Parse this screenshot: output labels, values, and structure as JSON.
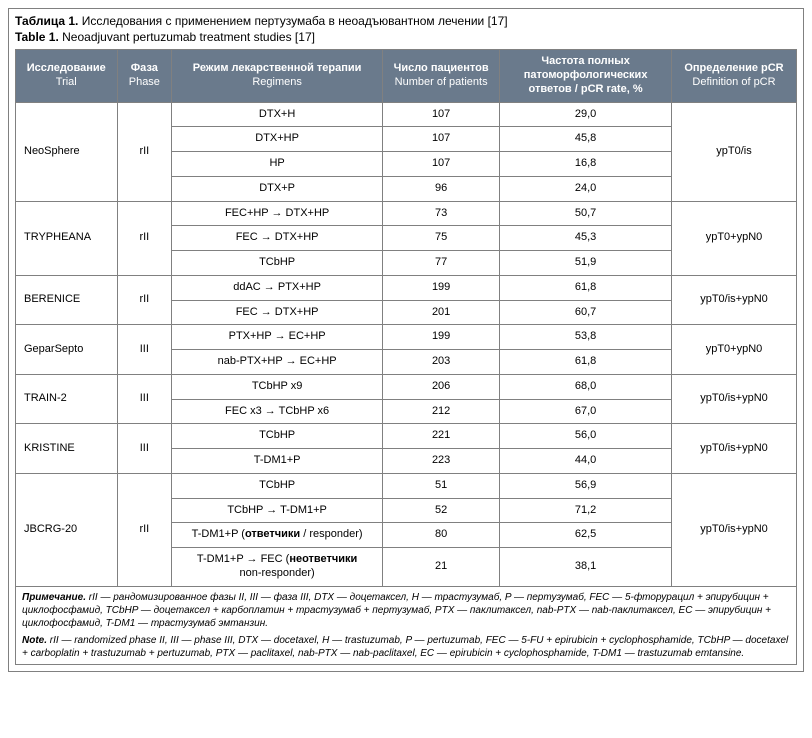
{
  "title": {
    "ru_bold": "Таблица 1.",
    "ru_rest": " Исследования с применением пертузумаба в неоадъювантном лечении [17]",
    "en_bold": "Table 1.",
    "en_rest": " Neoadjuvant pertuzumab treatment studies [17]"
  },
  "headers": {
    "trial": {
      "ru": "Исследование",
      "en": "Trial"
    },
    "phase": {
      "ru": "Фаза",
      "en": "Phase"
    },
    "regimen": {
      "ru": "Режим лекарственной терапии",
      "en": "Regimens"
    },
    "n": {
      "ru": "Число пациентов",
      "en": "Number of patients"
    },
    "pcr": {
      "ru": "Частота полных патоморфоло­гических ответов",
      "en": "pCR rate, %"
    },
    "def": {
      "ru": "Определение pCR",
      "en": "Definition of pCR"
    }
  },
  "groups": [
    {
      "trial": "NeoSphere",
      "phase": "rII",
      "def": "ypT0/is",
      "rows": [
        {
          "regimen": "DTX+H",
          "n": "107",
          "pcr": "29,0"
        },
        {
          "regimen": "DTX+HP",
          "n": "107",
          "pcr": "45,8"
        },
        {
          "regimen": "HP",
          "n": "107",
          "pcr": "16,8"
        },
        {
          "regimen": "DTX+P",
          "n": "96",
          "pcr": "24,0"
        }
      ]
    },
    {
      "trial": "TRYPHEANA",
      "phase": "rII",
      "def": "ypT0+ypN0",
      "rows": [
        {
          "regimen": "FEC+HP → DTX+HP",
          "n": "73",
          "pcr": "50,7"
        },
        {
          "regimen": "FEC → DTX+HP",
          "n": "75",
          "pcr": "45,3"
        },
        {
          "regimen": "TCbHP",
          "n": "77",
          "pcr": "51,9"
        }
      ]
    },
    {
      "trial": "BERENICE",
      "phase": "rII",
      "def": "ypT0/is+ypN0",
      "rows": [
        {
          "regimen": "ddAC → PTX+HP",
          "n": "199",
          "pcr": "61,8"
        },
        {
          "regimen": "FEC → DTX+HP",
          "n": "201",
          "pcr": "60,7"
        }
      ]
    },
    {
      "trial": "GeparSepto",
      "phase": "III",
      "def": "ypT0+ypN0",
      "rows": [
        {
          "regimen": "PTX+HP → EC+HP",
          "n": "199",
          "pcr": "53,8"
        },
        {
          "regimen": "nab-PTX+HP → EC+HP",
          "n": "203",
          "pcr": "61,8"
        }
      ]
    },
    {
      "trial": "TRAIN-2",
      "phase": "III",
      "def": "ypT0/is+ypN0",
      "rows": [
        {
          "regimen": "TCbHP x9",
          "n": "206",
          "pcr": "68,0"
        },
        {
          "regimen": "FEC x3 → TCbHP x6",
          "n": "212",
          "pcr": "67,0"
        }
      ]
    },
    {
      "trial": "KRISTINE",
      "phase": "III",
      "def": "ypT0/is+ypN0",
      "rows": [
        {
          "regimen": "TCbHP",
          "n": "221",
          "pcr": "56,0"
        },
        {
          "regimen": "T-DM1+P",
          "n": "223",
          "pcr": "44,0"
        }
      ]
    },
    {
      "trial": "JBCRG-20",
      "phase": "rII",
      "def": "ypT0/is+ypN0",
      "rows": [
        {
          "regimen": "TCbHP",
          "n": "51",
          "pcr": "56,9"
        },
        {
          "regimen": "TCbHP → T-DM1+P",
          "n": "52",
          "pcr": "71,2"
        },
        {
          "regimen_html": "T-DM1+P (<b class=\"inline-bold\">ответчики</b> / responder)",
          "n": "80",
          "pcr": "62,5"
        },
        {
          "regimen_html": "T-DM1+P → FEC (<b class=\"inline-bold\">неответчики</b><br>non-responder)",
          "n": "21",
          "pcr": "38,1"
        }
      ]
    }
  ],
  "notes": {
    "ru_bold": "Примечание.",
    "ru": " rII — рандомизированное фазы II, III — фаза III, DTX — доцетаксел, H — трастузумаб, P — пертузумаб, FEC — 5-фторурацил + эпирубицин + циклофосфамид, TCbHP — доцетаксел + карбоплатин + трастузумаб + пертузумаб, PTX — паклитаксел, nab-PTX — nab-паклитаксел, EC — эпирубицин + циклофосфамид, T-DM1 — трастузумаб эмтанзин.",
    "en_bold": "Note.",
    "en": " rII — randomized phase II, III — phase III, DTX — docetaxel, H — trastuzumab, P — pertuzumab, FEC — 5-FU + epirubicin + cyclophosphamide, TCbHP — docetaxel + carboplatin + trastuzumab + pertuzumab, PTX — paclitaxel, nab-PTX — nab-paclitaxel, EC — epirubicin + cyclophosphamide, T-DM1 — trastuzumab emtansine."
  },
  "colors": {
    "header_bg": "#6a7a8c",
    "header_fg": "#ffffff",
    "border": "#808080",
    "page_bg": "#ffffff",
    "text": "#000000"
  }
}
